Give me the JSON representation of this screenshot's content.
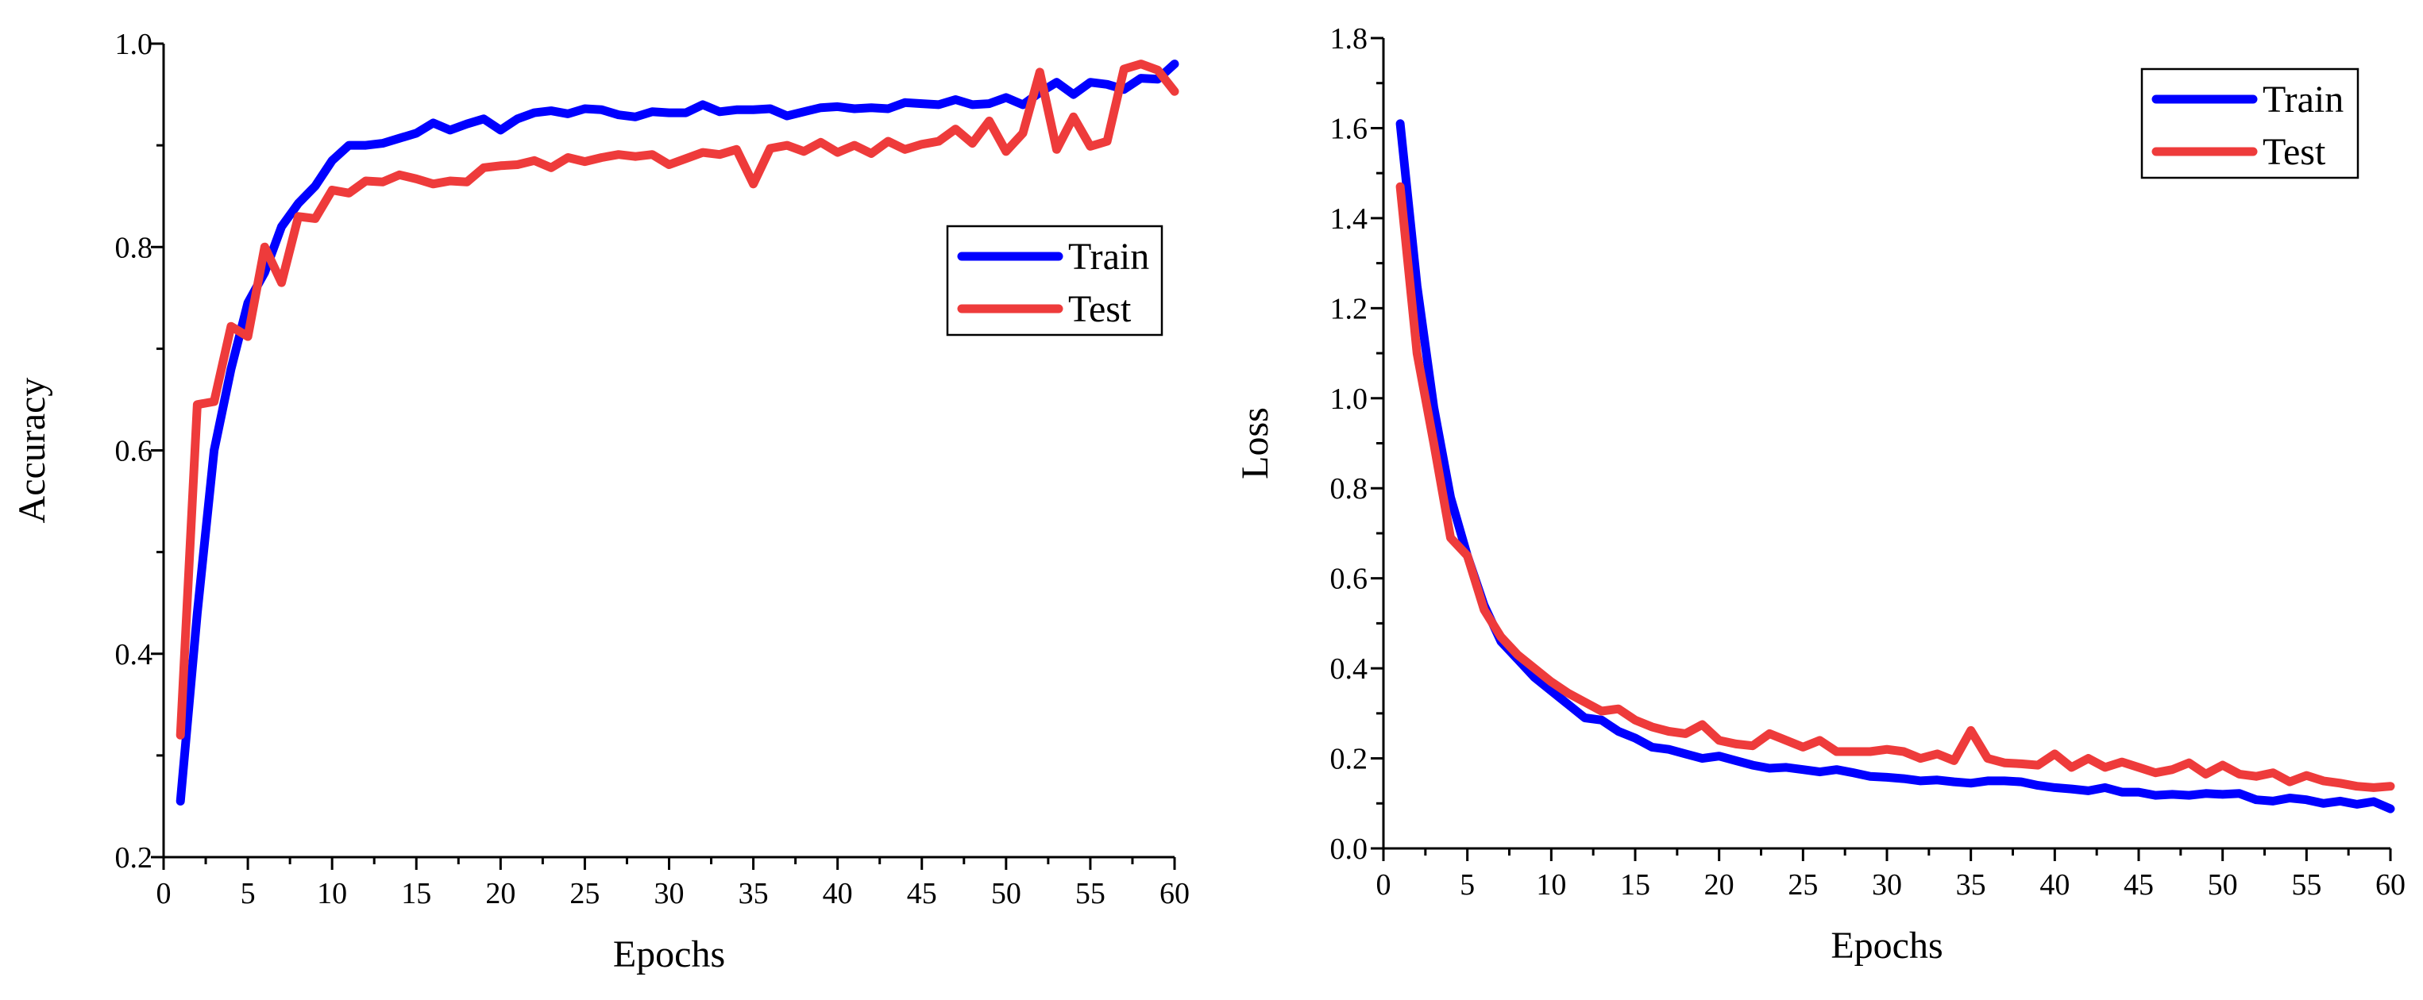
{
  "chart_data": [
    {
      "type": "line",
      "xlabel": "Epochs",
      "ylabel": "Accuracy",
      "xlim": [
        0,
        60
      ],
      "ylim": [
        0.2,
        1.0
      ],
      "xticks": [
        0,
        5,
        10,
        15,
        20,
        25,
        30,
        35,
        40,
        45,
        50,
        55,
        60
      ],
      "xtick_labels": [
        "0",
        "5",
        "10",
        "15",
        "20",
        "25",
        "30",
        "35",
        "40",
        "45",
        "50",
        "55",
        "60"
      ],
      "yticks": [
        0.2,
        0.4,
        0.6,
        0.8,
        1.0
      ],
      "ytick_labels": [
        "0.2",
        "0.4",
        "0.6",
        "0.8",
        "1.0"
      ],
      "legend_position": "middle-right",
      "x": [
        1,
        2,
        3,
        4,
        5,
        6,
        7,
        8,
        9,
        10,
        11,
        12,
        13,
        14,
        15,
        16,
        17,
        18,
        19,
        20,
        21,
        22,
        23,
        24,
        25,
        26,
        27,
        28,
        29,
        30,
        31,
        32,
        33,
        34,
        35,
        36,
        37,
        38,
        39,
        40,
        41,
        42,
        43,
        44,
        45,
        46,
        47,
        48,
        49,
        50,
        51,
        52,
        53,
        54,
        55,
        56,
        57,
        58,
        59,
        60
      ],
      "series": [
        {
          "name": "Train",
          "color": "#0000ff",
          "values": [
            0.255,
            0.44,
            0.6,
            0.68,
            0.745,
            0.775,
            0.82,
            0.843,
            0.86,
            0.885,
            0.9,
            0.9,
            0.902,
            0.907,
            0.912,
            0.922,
            0.915,
            0.921,
            0.926,
            0.915,
            0.926,
            0.932,
            0.934,
            0.931,
            0.936,
            0.935,
            0.93,
            0.928,
            0.933,
            0.932,
            0.932,
            0.94,
            0.933,
            0.935,
            0.935,
            0.936,
            0.929,
            0.933,
            0.937,
            0.938,
            0.936,
            0.937,
            0.936,
            0.942,
            0.941,
            0.94,
            0.945,
            0.94,
            0.941,
            0.947,
            0.94,
            0.952,
            0.962,
            0.95,
            0.962,
            0.96,
            0.955,
            0.966,
            0.965,
            0.98
          ]
        },
        {
          "name": "Test",
          "color": "#ee3b3b",
          "values": [
            0.32,
            0.645,
            0.648,
            0.722,
            0.712,
            0.8,
            0.765,
            0.83,
            0.828,
            0.856,
            0.853,
            0.865,
            0.864,
            0.871,
            0.867,
            0.862,
            0.865,
            0.864,
            0.878,
            0.88,
            0.881,
            0.885,
            0.878,
            0.888,
            0.884,
            0.888,
            0.891,
            0.889,
            0.891,
            0.881,
            0.887,
            0.893,
            0.891,
            0.896,
            0.862,
            0.897,
            0.9,
            0.894,
            0.903,
            0.893,
            0.9,
            0.892,
            0.904,
            0.896,
            0.901,
            0.904,
            0.916,
            0.902,
            0.924,
            0.894,
            0.912,
            0.972,
            0.896,
            0.928,
            0.899,
            0.904,
            0.975,
            0.98,
            0.974,
            0.953
          ]
        }
      ]
    },
    {
      "type": "line",
      "xlabel": "Epochs",
      "ylabel": "Loss",
      "xlim": [
        0,
        60
      ],
      "ylim": [
        0.0,
        1.8
      ],
      "xticks": [
        0,
        5,
        10,
        15,
        20,
        25,
        30,
        35,
        40,
        45,
        50,
        55,
        60
      ],
      "xtick_labels": [
        "0",
        "5",
        "10",
        "15",
        "20",
        "25",
        "30",
        "35",
        "40",
        "45",
        "50",
        "55",
        "60"
      ],
      "yticks": [
        0.0,
        0.2,
        0.4,
        0.6,
        0.8,
        1.0,
        1.2,
        1.4,
        1.6,
        1.8
      ],
      "ytick_labels": [
        "0.0",
        "0.2",
        "0.4",
        "0.6",
        "0.8",
        "1.0",
        "1.2",
        "1.4",
        "1.6",
        "1.8"
      ],
      "legend_position": "top-right",
      "x": [
        1,
        2,
        3,
        4,
        5,
        6,
        7,
        8,
        9,
        10,
        11,
        12,
        13,
        14,
        15,
        16,
        17,
        18,
        19,
        20,
        21,
        22,
        23,
        24,
        25,
        26,
        27,
        28,
        29,
        30,
        31,
        32,
        33,
        34,
        35,
        36,
        37,
        38,
        39,
        40,
        41,
        42,
        43,
        44,
        45,
        46,
        47,
        48,
        49,
        50,
        51,
        52,
        53,
        54,
        55,
        56,
        57,
        58,
        59,
        60
      ],
      "series": [
        {
          "name": "Train",
          "color": "#0000ff",
          "values": [
            1.61,
            1.25,
            0.98,
            0.78,
            0.65,
            0.54,
            0.46,
            0.42,
            0.38,
            0.35,
            0.32,
            0.29,
            0.285,
            0.26,
            0.245,
            0.225,
            0.22,
            0.21,
            0.2,
            0.205,
            0.195,
            0.185,
            0.178,
            0.18,
            0.175,
            0.17,
            0.175,
            0.168,
            0.16,
            0.158,
            0.155,
            0.15,
            0.152,
            0.148,
            0.145,
            0.15,
            0.15,
            0.148,
            0.14,
            0.135,
            0.132,
            0.128,
            0.135,
            0.125,
            0.125,
            0.118,
            0.12,
            0.118,
            0.122,
            0.12,
            0.122,
            0.108,
            0.105,
            0.112,
            0.108,
            0.1,
            0.105,
            0.098,
            0.104,
            0.088
          ]
        },
        {
          "name": "Test",
          "color": "#ee3b3b",
          "values": [
            1.47,
            1.1,
            0.9,
            0.69,
            0.65,
            0.53,
            0.47,
            0.43,
            0.4,
            0.37,
            0.345,
            0.325,
            0.305,
            0.31,
            0.285,
            0.27,
            0.26,
            0.255,
            0.275,
            0.24,
            0.232,
            0.228,
            0.255,
            0.24,
            0.225,
            0.24,
            0.215,
            0.215,
            0.215,
            0.22,
            0.215,
            0.2,
            0.21,
            0.195,
            0.262,
            0.2,
            0.19,
            0.188,
            0.185,
            0.21,
            0.18,
            0.2,
            0.18,
            0.192,
            0.18,
            0.168,
            0.175,
            0.19,
            0.165,
            0.185,
            0.165,
            0.16,
            0.168,
            0.148,
            0.162,
            0.15,
            0.145,
            0.138,
            0.135,
            0.138
          ]
        }
      ]
    }
  ]
}
